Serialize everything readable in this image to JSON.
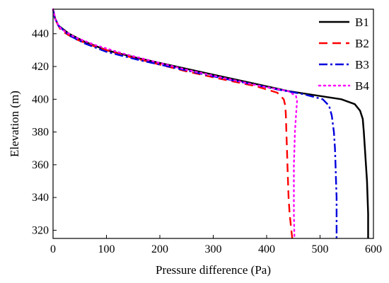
{
  "chart_data": {
    "type": "line",
    "title": "",
    "xlabel": "Pressure difference (Pa)",
    "ylabel": "Elevation (m)",
    "xlim": [
      0,
      600
    ],
    "ylim": [
      315,
      455
    ],
    "xticks": [
      0,
      100,
      200,
      300,
      400,
      500,
      600
    ],
    "yticks": [
      320,
      340,
      360,
      380,
      400,
      420,
      440
    ],
    "grid": false,
    "legend_position": "top-right",
    "series": [
      {
        "name": "B1",
        "color": "#000000",
        "dash": "solid",
        "points": [
          [
            0,
            455
          ],
          [
            3,
            450
          ],
          [
            10,
            445
          ],
          [
            30,
            440
          ],
          [
            60,
            435
          ],
          [
            100,
            430
          ],
          [
            160,
            425
          ],
          [
            230,
            420
          ],
          [
            300,
            415
          ],
          [
            370,
            410
          ],
          [
            440,
            405
          ],
          [
            500,
            402
          ],
          [
            540,
            400
          ],
          [
            565,
            397
          ],
          [
            575,
            393
          ],
          [
            580,
            388
          ],
          [
            582,
            380
          ],
          [
            584,
            370
          ],
          [
            586,
            360
          ],
          [
            588,
            350
          ],
          [
            589,
            340
          ],
          [
            590,
            330
          ],
          [
            590,
            315
          ]
        ]
      },
      {
        "name": "B2",
        "color": "#ff0000",
        "dash": "dashed",
        "points": [
          [
            0,
            455
          ],
          [
            5,
            448
          ],
          [
            15,
            442
          ],
          [
            40,
            437
          ],
          [
            80,
            432
          ],
          [
            130,
            427
          ],
          [
            190,
            422
          ],
          [
            250,
            417
          ],
          [
            320,
            412
          ],
          [
            380,
            408
          ],
          [
            420,
            404
          ],
          [
            432,
            400
          ],
          [
            435,
            396
          ],
          [
            436,
            390
          ],
          [
            437,
            380
          ],
          [
            438,
            370
          ],
          [
            439,
            360
          ],
          [
            440,
            350
          ],
          [
            441,
            340
          ],
          [
            443,
            330
          ],
          [
            448,
            315
          ]
        ]
      },
      {
        "name": "B3",
        "color": "#0000dd",
        "dash": "dashdot",
        "points": [
          [
            0,
            455
          ],
          [
            3,
            450
          ],
          [
            10,
            445
          ],
          [
            30,
            439
          ],
          [
            60,
            434
          ],
          [
            100,
            429
          ],
          [
            160,
            424
          ],
          [
            230,
            419
          ],
          [
            300,
            414
          ],
          [
            360,
            410
          ],
          [
            420,
            406
          ],
          [
            470,
            403
          ],
          [
            505,
            400
          ],
          [
            517,
            396
          ],
          [
            522,
            390
          ],
          [
            526,
            380
          ],
          [
            528,
            370
          ],
          [
            529,
            360
          ],
          [
            530,
            350
          ],
          [
            531,
            340
          ],
          [
            531,
            330
          ],
          [
            531,
            315
          ]
        ]
      },
      {
        "name": "B4",
        "color": "#ff00ff",
        "dash": "dotted",
        "points": [
          [
            0,
            455
          ],
          [
            5,
            448
          ],
          [
            15,
            443
          ],
          [
            40,
            438
          ],
          [
            80,
            433
          ],
          [
            130,
            428
          ],
          [
            190,
            423
          ],
          [
            250,
            418
          ],
          [
            320,
            413
          ],
          [
            390,
            408
          ],
          [
            440,
            405
          ],
          [
            455,
            402
          ],
          [
            457,
            399
          ],
          [
            456,
            395
          ],
          [
            455,
            390
          ],
          [
            453,
            380
          ],
          [
            452,
            370
          ],
          [
            451,
            360
          ],
          [
            451,
            350
          ],
          [
            451,
            340
          ],
          [
            451,
            330
          ],
          [
            452,
            315
          ]
        ]
      }
    ]
  }
}
